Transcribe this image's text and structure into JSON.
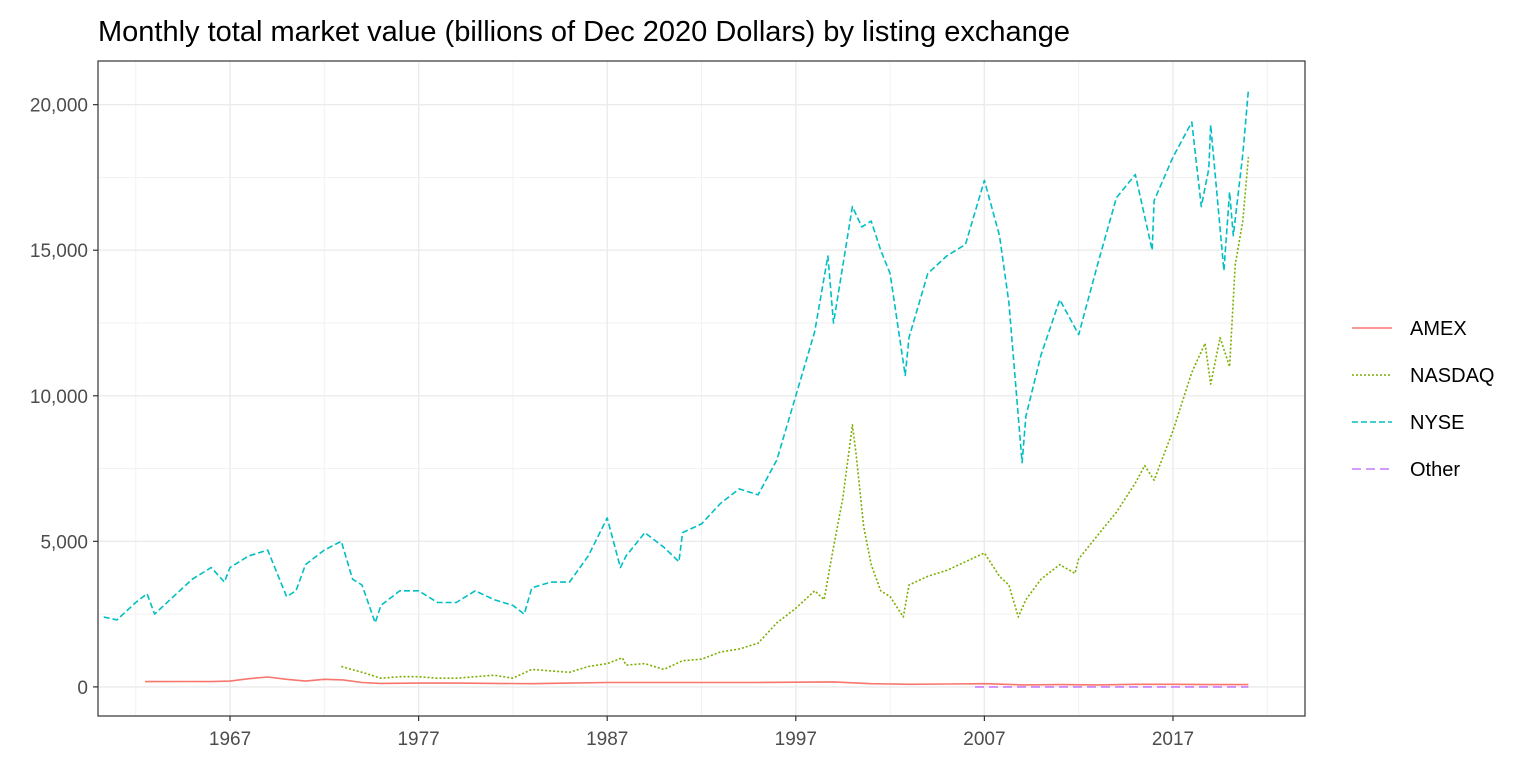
{
  "chart_data": {
    "type": "line",
    "title": "Monthly total market value (billions of Dec 2020 Dollars) by listing exchange",
    "xlabel": "",
    "ylabel": "",
    "xlim": [
      1960,
      2024
    ],
    "ylim": [
      -1000,
      21500
    ],
    "x_ticks": [
      1967,
      1977,
      1987,
      1997,
      2007,
      2017
    ],
    "x_tick_labels": [
      "1967",
      "1977",
      "1987",
      "1997",
      "2007",
      "2017"
    ],
    "y_ticks": [
      0,
      5000,
      10000,
      15000,
      20000
    ],
    "y_tick_labels": [
      "0",
      "5,000",
      "10,000",
      "15,000",
      "20,000"
    ],
    "grid": true,
    "legend_position": "right",
    "series": [
      {
        "name": "AMEX",
        "color": "#F8766D",
        "dash": "solid",
        "x": [
          1962.5,
          1965,
          1966,
          1967,
          1968,
          1969,
          1970,
          1971,
          1972,
          1973,
          1974,
          1975,
          1977,
          1979,
          1981,
          1983,
          1985,
          1987,
          1989,
          1991,
          1993,
          1995,
          1997,
          1999,
          2001,
          2003,
          2005,
          2007,
          2009,
          2011,
          2013,
          2015,
          2017,
          2019,
          2021
        ],
        "values": [
          180,
          185,
          180,
          200,
          280,
          340,
          260,
          200,
          260,
          240,
          150,
          120,
          130,
          130,
          120,
          110,
          130,
          150,
          150,
          150,
          150,
          150,
          160,
          170,
          110,
          90,
          100,
          110,
          70,
          80,
          70,
          90,
          90,
          80,
          80
        ]
      },
      {
        "name": "NASDAQ",
        "color": "#7CAE00",
        "dash": "dotted",
        "x": [
          1972.9,
          1974,
          1975,
          1976,
          1977,
          1978,
          1979,
          1980,
          1981,
          1982,
          1983,
          1984,
          1985,
          1986,
          1987,
          1987.8,
          1988,
          1989,
          1990,
          1991,
          1992,
          1993,
          1994,
          1995,
          1996,
          1997,
          1998,
          1998.5,
          1999,
          1999.5,
          2000,
          2000.2,
          2000.6,
          2001,
          2001.5,
          2002,
          2002.7,
          2003,
          2004,
          2005,
          2006,
          2007,
          2007.8,
          2008.3,
          2008.8,
          2009.2,
          2010,
          2011,
          2011.8,
          2012,
          2013,
          2014,
          2015,
          2015.5,
          2016,
          2017,
          2018,
          2018.7,
          2019,
          2019.5,
          2020,
          2020.3,
          2020.7,
          2021
        ],
        "values": [
          700,
          500,
          300,
          350,
          350,
          300,
          300,
          350,
          400,
          300,
          600,
          550,
          500,
          700,
          800,
          1000,
          750,
          800,
          600,
          900,
          950,
          1200,
          1300,
          1500,
          2200,
          2700,
          3300,
          3000,
          4800,
          6500,
          9000,
          8000,
          5500,
          4200,
          3300,
          3100,
          2400,
          3500,
          3800,
          4000,
          4300,
          4600,
          3800,
          3500,
          2400,
          3000,
          3700,
          4200,
          3900,
          4400,
          5200,
          6000,
          7000,
          7600,
          7100,
          8800,
          10800,
          11800,
          10400,
          12000,
          11000,
          14500,
          16000,
          18200
        ]
      },
      {
        "name": "NYSE",
        "color": "#00BFC4",
        "dash": "dashed",
        "x": [
          1960.3,
          1961,
          1962,
          1962.6,
          1963,
          1964,
          1965,
          1966,
          1966.7,
          1967,
          1968,
          1969,
          1970,
          1970.5,
          1971,
          1972,
          1972.9,
          1973.5,
          1974,
          1974.7,
          1975,
          1976,
          1977,
          1978,
          1979,
          1980,
          1981,
          1982,
          1982.6,
          1983,
          1984,
          1985,
          1986,
          1987,
          1987.7,
          1988,
          1989,
          1990,
          1990.8,
          1991,
          1992,
          1993,
          1994,
          1995,
          1996,
          1997,
          1998,
          1998.7,
          1999,
          2000,
          2000.5,
          2001,
          2001.5,
          2002,
          2002.8,
          2003,
          2004,
          2005,
          2006,
          2007,
          2007.8,
          2008.3,
          2009,
          2009.2,
          2010,
          2011,
          2012,
          2013,
          2014,
          2015,
          2015.9,
          2016,
          2017,
          2018,
          2018.5,
          2018.9,
          2019,
          2019.7,
          2020,
          2020.2,
          2020.7,
          2021
        ],
        "values": [
          2400,
          2300,
          2900,
          3200,
          2500,
          3100,
          3700,
          4100,
          3600,
          4100,
          4500,
          4700,
          3100,
          3300,
          4200,
          4700,
          5000,
          3700,
          3500,
          2200,
          2800,
          3300,
          3300,
          2900,
          2900,
          3300,
          3000,
          2800,
          2500,
          3400,
          3600,
          3600,
          4500,
          5800,
          4100,
          4500,
          5300,
          4800,
          4300,
          5300,
          5600,
          6300,
          6800,
          6600,
          7800,
          10000,
          12200,
          14800,
          12500,
          16500,
          15800,
          16000,
          15000,
          14200,
          10700,
          12000,
          14200,
          14800,
          15200,
          17400,
          15500,
          13200,
          7700,
          9300,
          11400,
          13300,
          12100,
          14500,
          16800,
          17600,
          15000,
          16700,
          18200,
          19400,
          16500,
          17800,
          19300,
          14300,
          17000,
          15500,
          18300,
          20500
        ]
      },
      {
        "name": "Other",
        "color": "#C77CFF",
        "dash": "longdash",
        "x": [
          2006.5,
          2008,
          2010,
          2012,
          2014,
          2016,
          2018,
          2020,
          2021
        ],
        "values": [
          0,
          0,
          0,
          0,
          0,
          0,
          0,
          0,
          0
        ]
      }
    ]
  }
}
